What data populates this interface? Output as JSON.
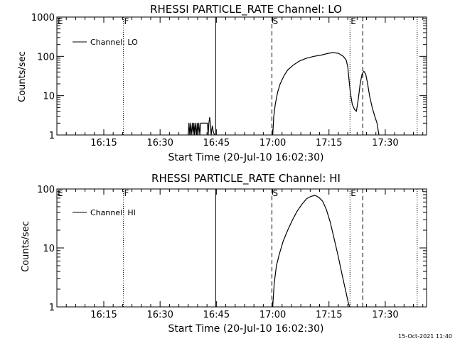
{
  "footer": {
    "date": "15-Oct-2021 11:40"
  },
  "chart_data": [
    {
      "type": "line",
      "title": "RHESSI PARTICLE_RATE Channel: LO",
      "xlabel": "Start Time (20-Jul-10 16:02:30)",
      "ylabel": "Counts/sec",
      "yscale": "log",
      "xlim_minutes": [
        2.5,
        101
      ],
      "ylim": [
        1,
        1000
      ],
      "x_ticks": [
        {
          "label": "16:15",
          "minutes": 15
        },
        {
          "label": "16:30",
          "minutes": 30
        },
        {
          "label": "16:45",
          "minutes": 45
        },
        {
          "label": "17:00",
          "minutes": 60
        },
        {
          "label": "17:15",
          "minutes": 75
        },
        {
          "label": "17:30",
          "minutes": 90
        }
      ],
      "y_ticks": [
        {
          "label": "1",
          "value": 1
        },
        {
          "label": "10",
          "value": 10
        },
        {
          "label": "100",
          "value": 100
        },
        {
          "label": "1000",
          "value": 1000
        }
      ],
      "legend": {
        "label": "Channel: LO",
        "position": "top-left"
      },
      "markers": [
        {
          "label": "E",
          "minutes": 2.5,
          "style": "dotted"
        },
        {
          "label": "F",
          "minutes": 20.2,
          "style": "dotted"
        },
        {
          "label": "",
          "minutes": 44.8,
          "style": "solid"
        },
        {
          "label": "S",
          "minutes": 59.8,
          "style": "dashed"
        },
        {
          "label": "E",
          "minutes": 80.6,
          "style": "dotted"
        },
        {
          "label": "",
          "minutes": 84.0,
          "style": "dashed"
        },
        {
          "label": "",
          "minutes": 98.5,
          "style": "dotted"
        }
      ],
      "series": [
        {
          "name": "Channel: LO",
          "segments": [
            {
              "x": [
                37.5,
                37.7,
                37.9,
                38.1,
                38.3,
                38.6,
                38.8,
                39.0,
                39.2,
                39.4,
                39.7,
                39.9,
                40.1,
                40.3,
                40.6,
                40.8,
                41.0,
                41.4,
                41.8,
                42.2,
                42.6,
                42.8,
                43.0,
                43.2,
                43.4,
                43.6,
                43.9,
                44.2,
                44.5
              ],
              "y": [
                1,
                2,
                1,
                2,
                1,
                2,
                1,
                2,
                1,
                2,
                1,
                2,
                1,
                2,
                1,
                2,
                2,
                2,
                2,
                2,
                2,
                1,
                2,
                2.8,
                2,
                1,
                1.7,
                1.2,
                1
              ]
            },
            {
              "x": [
                60.0,
                60.3,
                60.7,
                61.3,
                62.0,
                63.0,
                64.0,
                65.5,
                67.0,
                69.0,
                71.0,
                73.0,
                74.5,
                76.0,
                77.5,
                78.8,
                79.6,
                80.0,
                80.3,
                80.7,
                81.2,
                81.8,
                82.3,
                82.8,
                83.3,
                83.8,
                84.3,
                84.8,
                85.3,
                85.8,
                86.5,
                87.2,
                87.8,
                88.3
              ],
              "y": [
                1,
                3,
                6,
                12,
                20,
                32,
                45,
                60,
                75,
                90,
                100,
                108,
                118,
                125,
                120,
                100,
                80,
                55,
                28,
                12,
                6,
                4.5,
                4,
                8,
                20,
                35,
                42,
                35,
                20,
                10,
                5,
                3,
                2,
                1
              ]
            }
          ]
        }
      ]
    },
    {
      "type": "line",
      "title": "RHESSI PARTICLE_RATE Channel: HI",
      "xlabel": "Start Time (20-Jul-10 16:02:30)",
      "ylabel": "Counts/sec",
      "yscale": "log",
      "xlim_minutes": [
        2.5,
        101
      ],
      "ylim": [
        1,
        100
      ],
      "x_ticks": [
        {
          "label": "16:15",
          "minutes": 15
        },
        {
          "label": "16:30",
          "minutes": 30
        },
        {
          "label": "16:45",
          "minutes": 45
        },
        {
          "label": "17:00",
          "minutes": 60
        },
        {
          "label": "17:15",
          "minutes": 75
        },
        {
          "label": "17:30",
          "minutes": 90
        }
      ],
      "y_ticks": [
        {
          "label": "1",
          "value": 1
        },
        {
          "label": "10",
          "value": 10
        },
        {
          "label": "100",
          "value": 100
        }
      ],
      "legend": {
        "label": "Channel: HI",
        "position": "top-left"
      },
      "markers": [
        {
          "label": "E",
          "minutes": 2.5,
          "style": "dotted"
        },
        {
          "label": "F",
          "minutes": 20.2,
          "style": "dotted"
        },
        {
          "label": "",
          "minutes": 44.8,
          "style": "solid"
        },
        {
          "label": "S",
          "minutes": 59.8,
          "style": "dashed"
        },
        {
          "label": "E",
          "minutes": 80.6,
          "style": "dotted"
        },
        {
          "label": "",
          "minutes": 84.0,
          "style": "dashed"
        },
        {
          "label": "",
          "minutes": 98.5,
          "style": "dotted"
        }
      ],
      "series": [
        {
          "name": "Channel: HI",
          "segments": [
            {
              "x": [
                60.0,
                60.4,
                61.0,
                61.8,
                62.8,
                64.0,
                65.3,
                66.5,
                67.8,
                69.0,
                70.2,
                71.3,
                72.3,
                73.3,
                74.3,
                75.3,
                76.3,
                77.3,
                78.3,
                79.0,
                79.6,
                80.1,
                80.5
              ],
              "y": [
                1,
                2.5,
                5,
                8,
                13,
                20,
                30,
                42,
                55,
                68,
                75,
                78,
                72,
                62,
                45,
                28,
                15,
                8,
                4,
                2.5,
                1.7,
                1.2,
                1
              ]
            }
          ]
        }
      ]
    }
  ]
}
